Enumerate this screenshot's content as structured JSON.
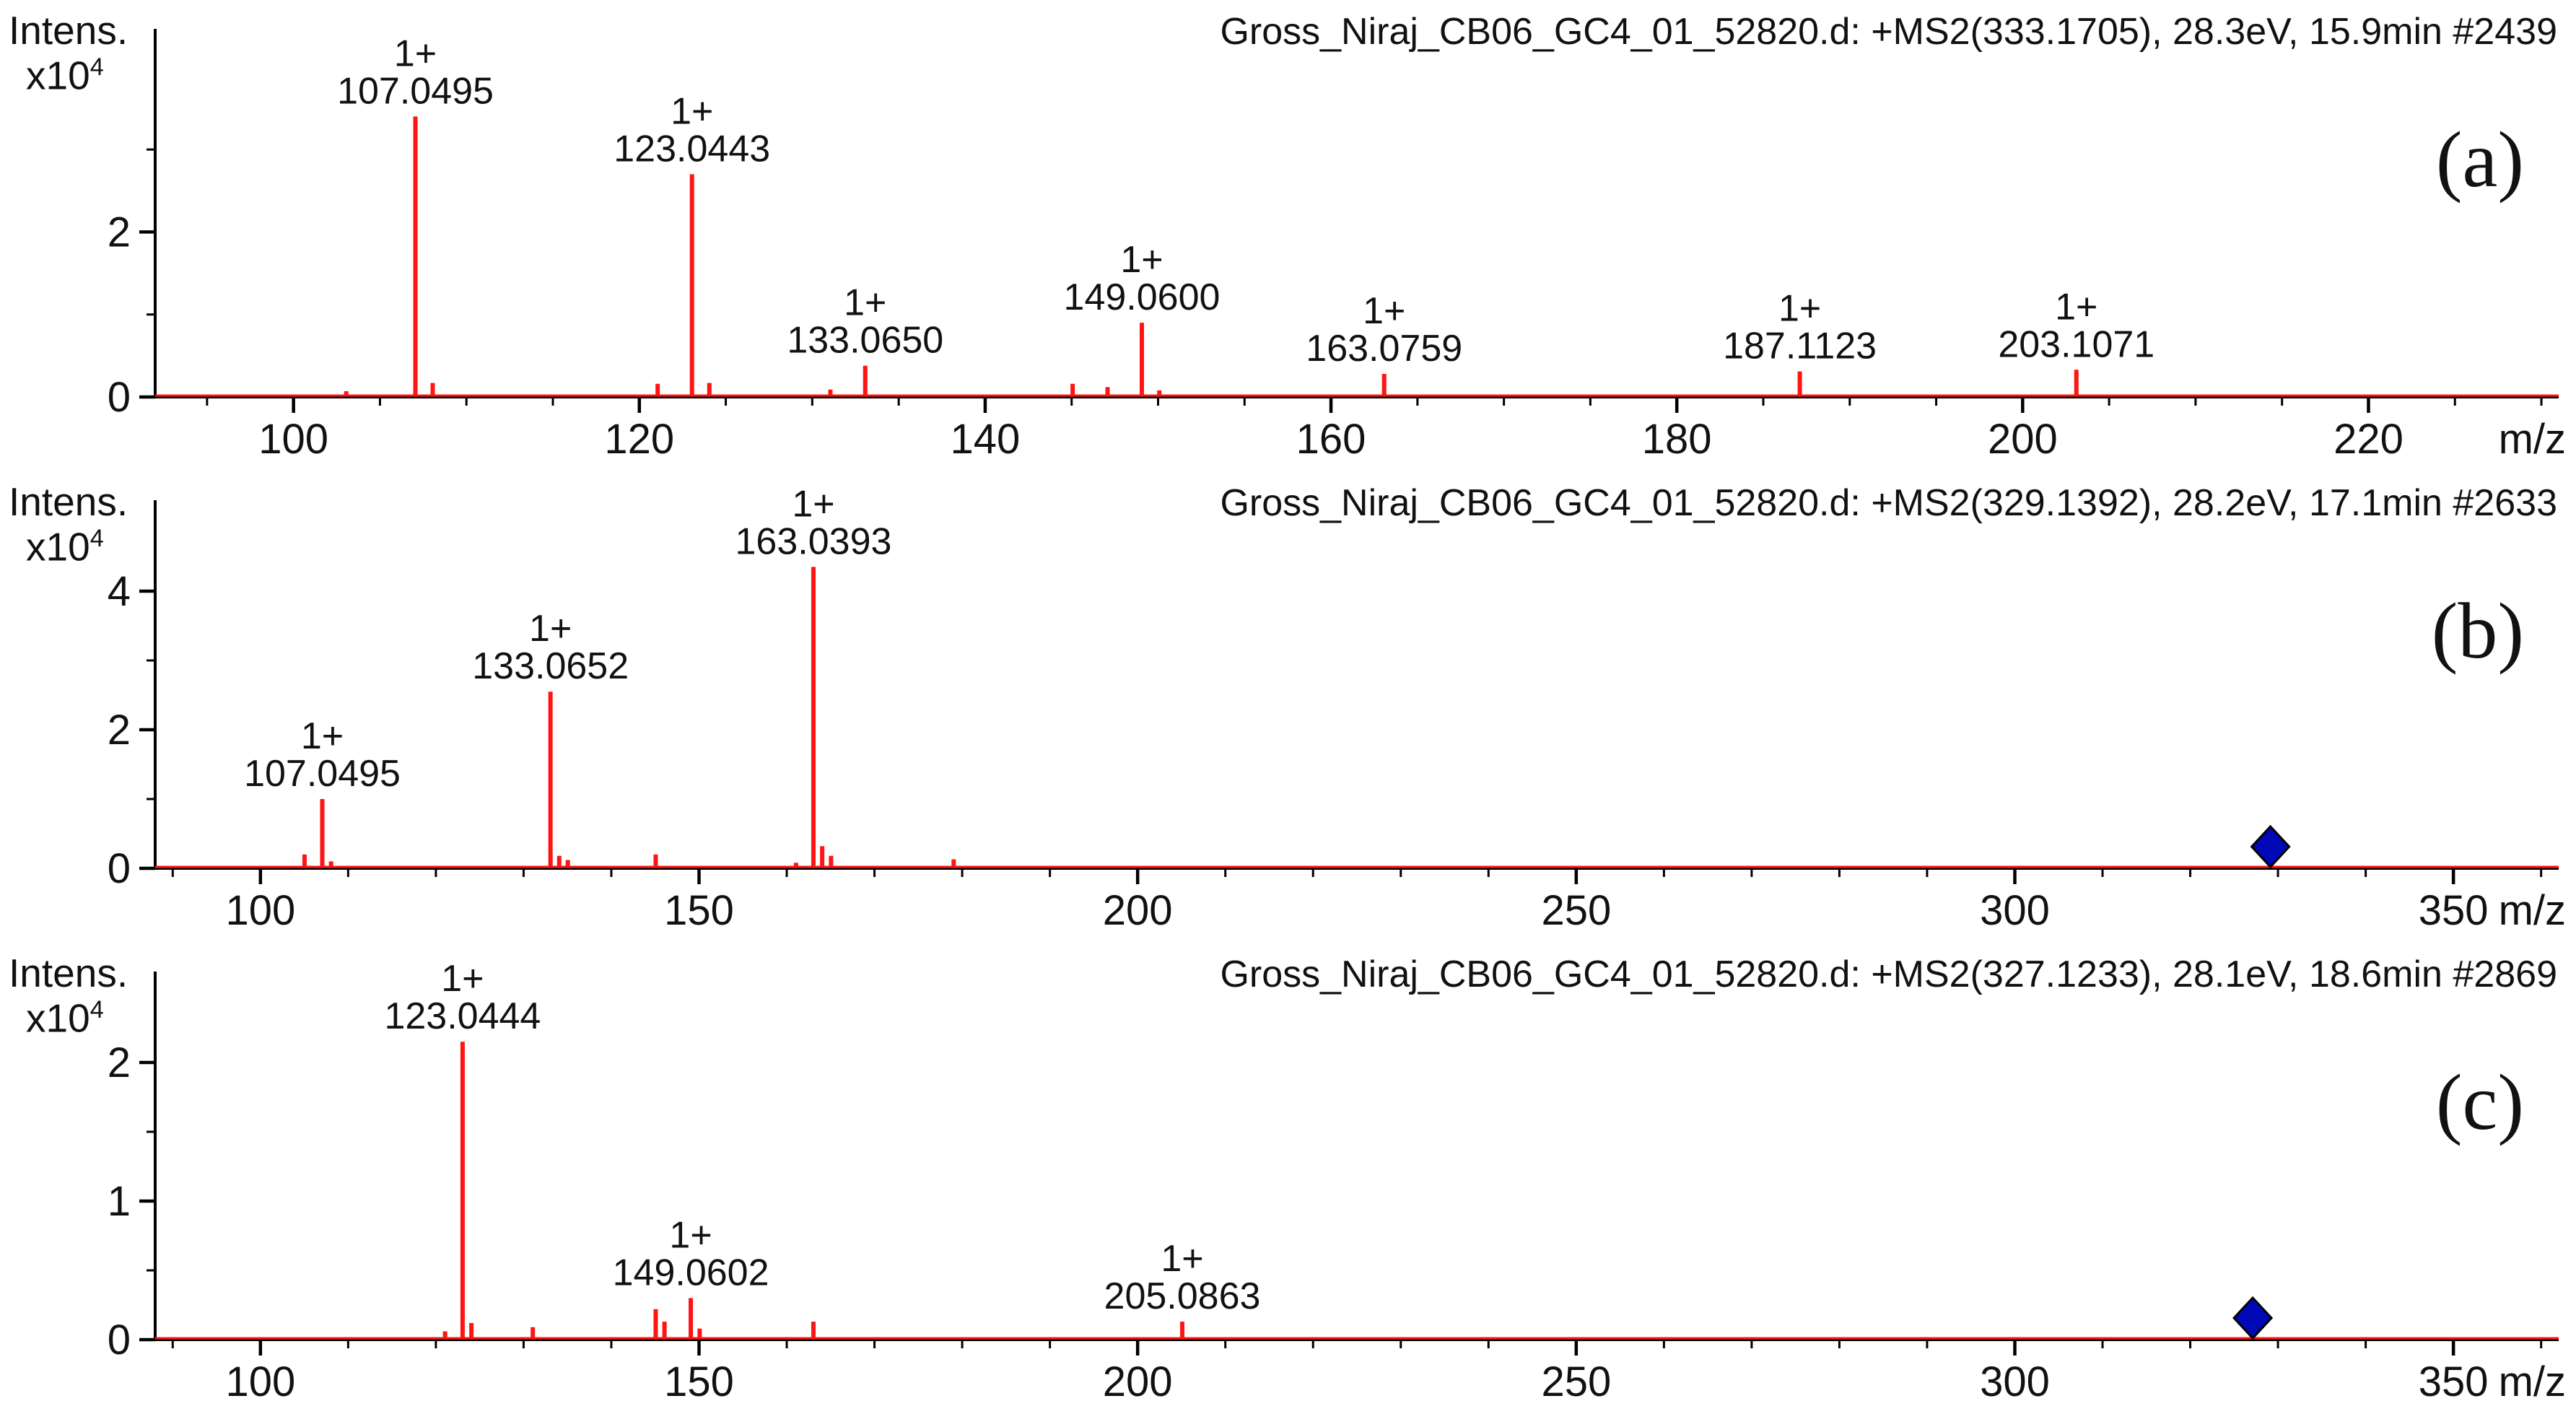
{
  "page": {
    "background": "#ffffff"
  },
  "colors": {
    "peak": "#ff1414",
    "axis": "#000000",
    "text": "#111111",
    "marker_fill": "#0008b8",
    "marker_edge": "#000000"
  },
  "y_axis_unit": {
    "label": "Intens.",
    "base": "x10",
    "exponent": "4"
  },
  "chart_data": [
    {
      "type": "line",
      "subtype": "mass-spectrum-stick",
      "panel_label": "(a)",
      "title": "Gross_Niraj_CB06_GC4_01_52820.d: +MS2(333.1705), 28.3eV, 15.9min #2439",
      "xlabel": "m/z",
      "ylabel": "Intens. x10^4",
      "xlim": [
        92,
        231
      ],
      "ylim": [
        0,
        4.2
      ],
      "xticks": [
        100,
        120,
        140,
        160,
        180,
        200,
        220
      ],
      "x_minor_step": 5,
      "yticks": [
        0,
        2
      ],
      "y_minor_ticks": [
        1,
        3
      ],
      "grid": false,
      "peaks": [
        [
          103.05,
          0.07
        ],
        [
          107.0495,
          3.4
        ],
        [
          108.05,
          0.17
        ],
        [
          121.06,
          0.16
        ],
        [
          123.0443,
          2.7
        ],
        [
          124.05,
          0.17
        ],
        [
          131.05,
          0.09
        ],
        [
          133.065,
          0.38
        ],
        [
          145.06,
          0.16
        ],
        [
          147.08,
          0.12
        ],
        [
          149.06,
          0.9
        ],
        [
          150.07,
          0.08
        ],
        [
          163.0759,
          0.28
        ],
        [
          187.1123,
          0.31
        ],
        [
          203.1071,
          0.33
        ]
      ],
      "peak_labels": [
        {
          "mz": 107.0495,
          "intensity": 3.4,
          "charge": "1+",
          "text": "107.0495"
        },
        {
          "mz": 123.0443,
          "intensity": 2.7,
          "charge": "1+",
          "text": "123.0443"
        },
        {
          "mz": 133.065,
          "intensity": 0.38,
          "charge": "1+",
          "text": "133.0650"
        },
        {
          "mz": 149.06,
          "intensity": 0.9,
          "charge": "1+",
          "text": "149.0600"
        },
        {
          "mz": 163.0759,
          "intensity": 0.28,
          "charge": "1+",
          "text": "163.0759"
        },
        {
          "mz": 187.1123,
          "intensity": 0.31,
          "charge": "1+",
          "text": "187.1123"
        },
        {
          "mz": 203.1071,
          "intensity": 0.33,
          "charge": "1+",
          "text": "203.1071"
        }
      ],
      "precursor_marker": null
    },
    {
      "type": "line",
      "subtype": "mass-spectrum-stick",
      "panel_label": "(b)",
      "title": "Gross_Niraj_CB06_GC4_01_52820.d: +MS2(329.1392), 28.2eV, 17.1min #2633",
      "xlabel": "m/z",
      "ylabel": "Intens. x10^4",
      "xlim": [
        88,
        362
      ],
      "ylim": [
        0,
        5.0
      ],
      "xticks": [
        100,
        150,
        200,
        250,
        300,
        350
      ],
      "x_minor_step": 10,
      "yticks": [
        0,
        2,
        4
      ],
      "y_minor_ticks": [
        1,
        3
      ],
      "grid": false,
      "peaks": [
        [
          105.03,
          0.2
        ],
        [
          107.0495,
          1.0
        ],
        [
          108.05,
          0.1
        ],
        [
          133.0652,
          2.55
        ],
        [
          134.06,
          0.18
        ],
        [
          135.04,
          0.12
        ],
        [
          145.06,
          0.2
        ],
        [
          161.06,
          0.08
        ],
        [
          163.0393,
          4.35
        ],
        [
          164.04,
          0.32
        ],
        [
          165.05,
          0.18
        ],
        [
          179.03,
          0.13
        ]
      ],
      "peak_labels": [
        {
          "mz": 107.0495,
          "intensity": 1.0,
          "charge": "1+",
          "text": "107.0495"
        },
        {
          "mz": 133.0652,
          "intensity": 2.55,
          "charge": "1+",
          "text": "133.0652"
        },
        {
          "mz": 163.0393,
          "intensity": 4.35,
          "charge": "1+",
          "text": "163.0393"
        }
      ],
      "precursor_marker": {
        "mz": 329.14
      }
    },
    {
      "type": "line",
      "subtype": "mass-spectrum-stick",
      "panel_label": "(c)",
      "title": "Gross_Niraj_CB06_GC4_01_52820.d: +MS2(327.1233), 28.1eV, 18.6min #2869",
      "xlabel": "m/z",
      "ylabel": "Intens. x10^4",
      "xlim": [
        88,
        362
      ],
      "ylim": [
        0,
        2.5
      ],
      "xticks": [
        100,
        150,
        200,
        250,
        300,
        350
      ],
      "x_minor_step": 10,
      "yticks": [
        0,
        1,
        2
      ],
      "y_minor_ticks": [
        0.5,
        1.5
      ],
      "grid": false,
      "peaks": [
        [
          121.05,
          0.06
        ],
        [
          123.0444,
          2.15
        ],
        [
          124.05,
          0.12
        ],
        [
          131.05,
          0.09
        ],
        [
          145.06,
          0.22
        ],
        [
          146.06,
          0.13
        ],
        [
          149.0602,
          0.3
        ],
        [
          150.07,
          0.08
        ],
        [
          163.04,
          0.13
        ],
        [
          205.0863,
          0.13
        ]
      ],
      "peak_labels": [
        {
          "mz": 123.0444,
          "intensity": 2.15,
          "charge": "1+",
          "text": "123.0444"
        },
        {
          "mz": 149.0602,
          "intensity": 0.3,
          "charge": "1+",
          "text": "149.0602"
        },
        {
          "mz": 205.0863,
          "intensity": 0.13,
          "charge": "1+",
          "text": "205.0863"
        }
      ],
      "precursor_marker": {
        "mz": 327.12
      }
    }
  ]
}
